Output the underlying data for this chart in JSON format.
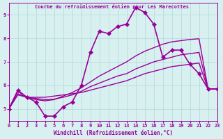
{
  "title": "Courbe du refroidissement éolien pour Les Marecottes",
  "xlabel": "Windchill (Refroidissement éolien,°C)",
  "bg_color": "#d8f0f0",
  "grid_color": "#b0d8d8",
  "line_color": "#990099",
  "xlim": [
    0,
    23
  ],
  "ylim": [
    4.5,
    9.5
  ],
  "yticks": [
    5,
    6,
    7,
    8,
    9
  ],
  "xticks": [
    0,
    1,
    2,
    3,
    4,
    5,
    6,
    7,
    8,
    9,
    10,
    11,
    12,
    13,
    14,
    15,
    16,
    17,
    18,
    19,
    20,
    21,
    22,
    23
  ],
  "series": [
    {
      "x": [
        0,
        1,
        2,
        3,
        4,
        5,
        6,
        7,
        8,
        9,
        10,
        11,
        12,
        13,
        14,
        15,
        16,
        17,
        18,
        19,
        20,
        21,
        22,
        23
      ],
      "y": [
        5.0,
        5.8,
        5.5,
        5.3,
        4.7,
        4.7,
        5.1,
        5.3,
        6.0,
        7.4,
        8.3,
        8.2,
        8.5,
        8.6,
        9.3,
        9.1,
        8.6,
        7.2,
        7.5,
        7.5,
        6.9,
        6.5,
        5.85,
        5.85
      ],
      "marker": "D",
      "markersize": 3,
      "linewidth": 1.2
    },
    {
      "x": [
        0,
        1,
        2,
        3,
        4,
        5,
        6,
        7,
        8,
        9,
        10,
        11,
        12,
        13,
        14,
        15,
        16,
        17,
        18,
        19,
        20,
        21,
        22,
        23
      ],
      "y": [
        5.0,
        5.6,
        5.5,
        5.5,
        5.5,
        5.55,
        5.6,
        5.65,
        5.7,
        5.8,
        5.9,
        6.0,
        6.1,
        6.2,
        6.35,
        6.5,
        6.6,
        6.7,
        6.8,
        6.85,
        6.9,
        6.95,
        5.85,
        5.85
      ],
      "marker": null,
      "markersize": 0,
      "linewidth": 1.0
    },
    {
      "x": [
        0,
        1,
        2,
        3,
        4,
        5,
        6,
        7,
        8,
        9,
        10,
        11,
        12,
        13,
        14,
        15,
        16,
        17,
        18,
        19,
        20,
        21,
        22,
        23
      ],
      "y": [
        5.0,
        5.65,
        5.5,
        5.45,
        5.4,
        5.42,
        5.5,
        5.6,
        5.75,
        5.95,
        6.1,
        6.25,
        6.4,
        6.5,
        6.7,
        6.85,
        7.0,
        7.1,
        7.2,
        7.3,
        7.35,
        7.4,
        5.85,
        5.85
      ],
      "marker": null,
      "markersize": 0,
      "linewidth": 1.0
    },
    {
      "x": [
        0,
        1,
        2,
        3,
        4,
        5,
        6,
        7,
        8,
        9,
        10,
        11,
        12,
        13,
        14,
        15,
        16,
        17,
        18,
        19,
        20,
        21,
        22,
        23
      ],
      "y": [
        5.0,
        5.75,
        5.5,
        5.4,
        5.35,
        5.4,
        5.55,
        5.7,
        5.9,
        6.15,
        6.4,
        6.6,
        6.8,
        7.0,
        7.25,
        7.45,
        7.6,
        7.75,
        7.85,
        7.9,
        7.95,
        7.98,
        5.85,
        5.85
      ],
      "marker": null,
      "markersize": 0,
      "linewidth": 1.0
    }
  ]
}
